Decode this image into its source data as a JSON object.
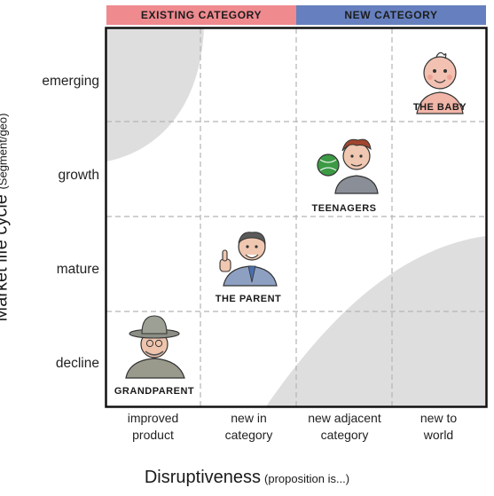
{
  "header": {
    "existing_category": "EXISTING CATEGORY",
    "new_category": "NEW CATEGORY"
  },
  "y_axis": {
    "title": "Market life cycle",
    "subtitle": "(Segment/geo)",
    "levels": [
      "emerging",
      "growth",
      "mature",
      "decline"
    ]
  },
  "x_axis": {
    "title": "Disruptiveness",
    "subtitle": "(proposition is...)",
    "levels": [
      [
        "improved",
        "product"
      ],
      [
        "new in",
        "category"
      ],
      [
        "new adjacent",
        "category"
      ],
      [
        "new to",
        "world"
      ]
    ]
  },
  "characters": [
    {
      "label": "THE BABY",
      "icon": "baby-icon",
      "column": "new to world",
      "row": "emerging"
    },
    {
      "label": "TEENAGERS",
      "icon": "teenager-icon",
      "column": "new adjacent category",
      "row": "growth"
    },
    {
      "label": "THE PARENT",
      "icon": "parent-icon",
      "column": "new in category",
      "row": "mature"
    },
    {
      "label": "GRANDPARENT",
      "icon": "grandparent-icon",
      "column": "improved product",
      "row": "decline"
    }
  ],
  "colors": {
    "existing_band": "#ef8a8f",
    "new_band": "#6680bf",
    "shaded_corner": "#dedede",
    "grid_line": "#b5b5b5"
  }
}
